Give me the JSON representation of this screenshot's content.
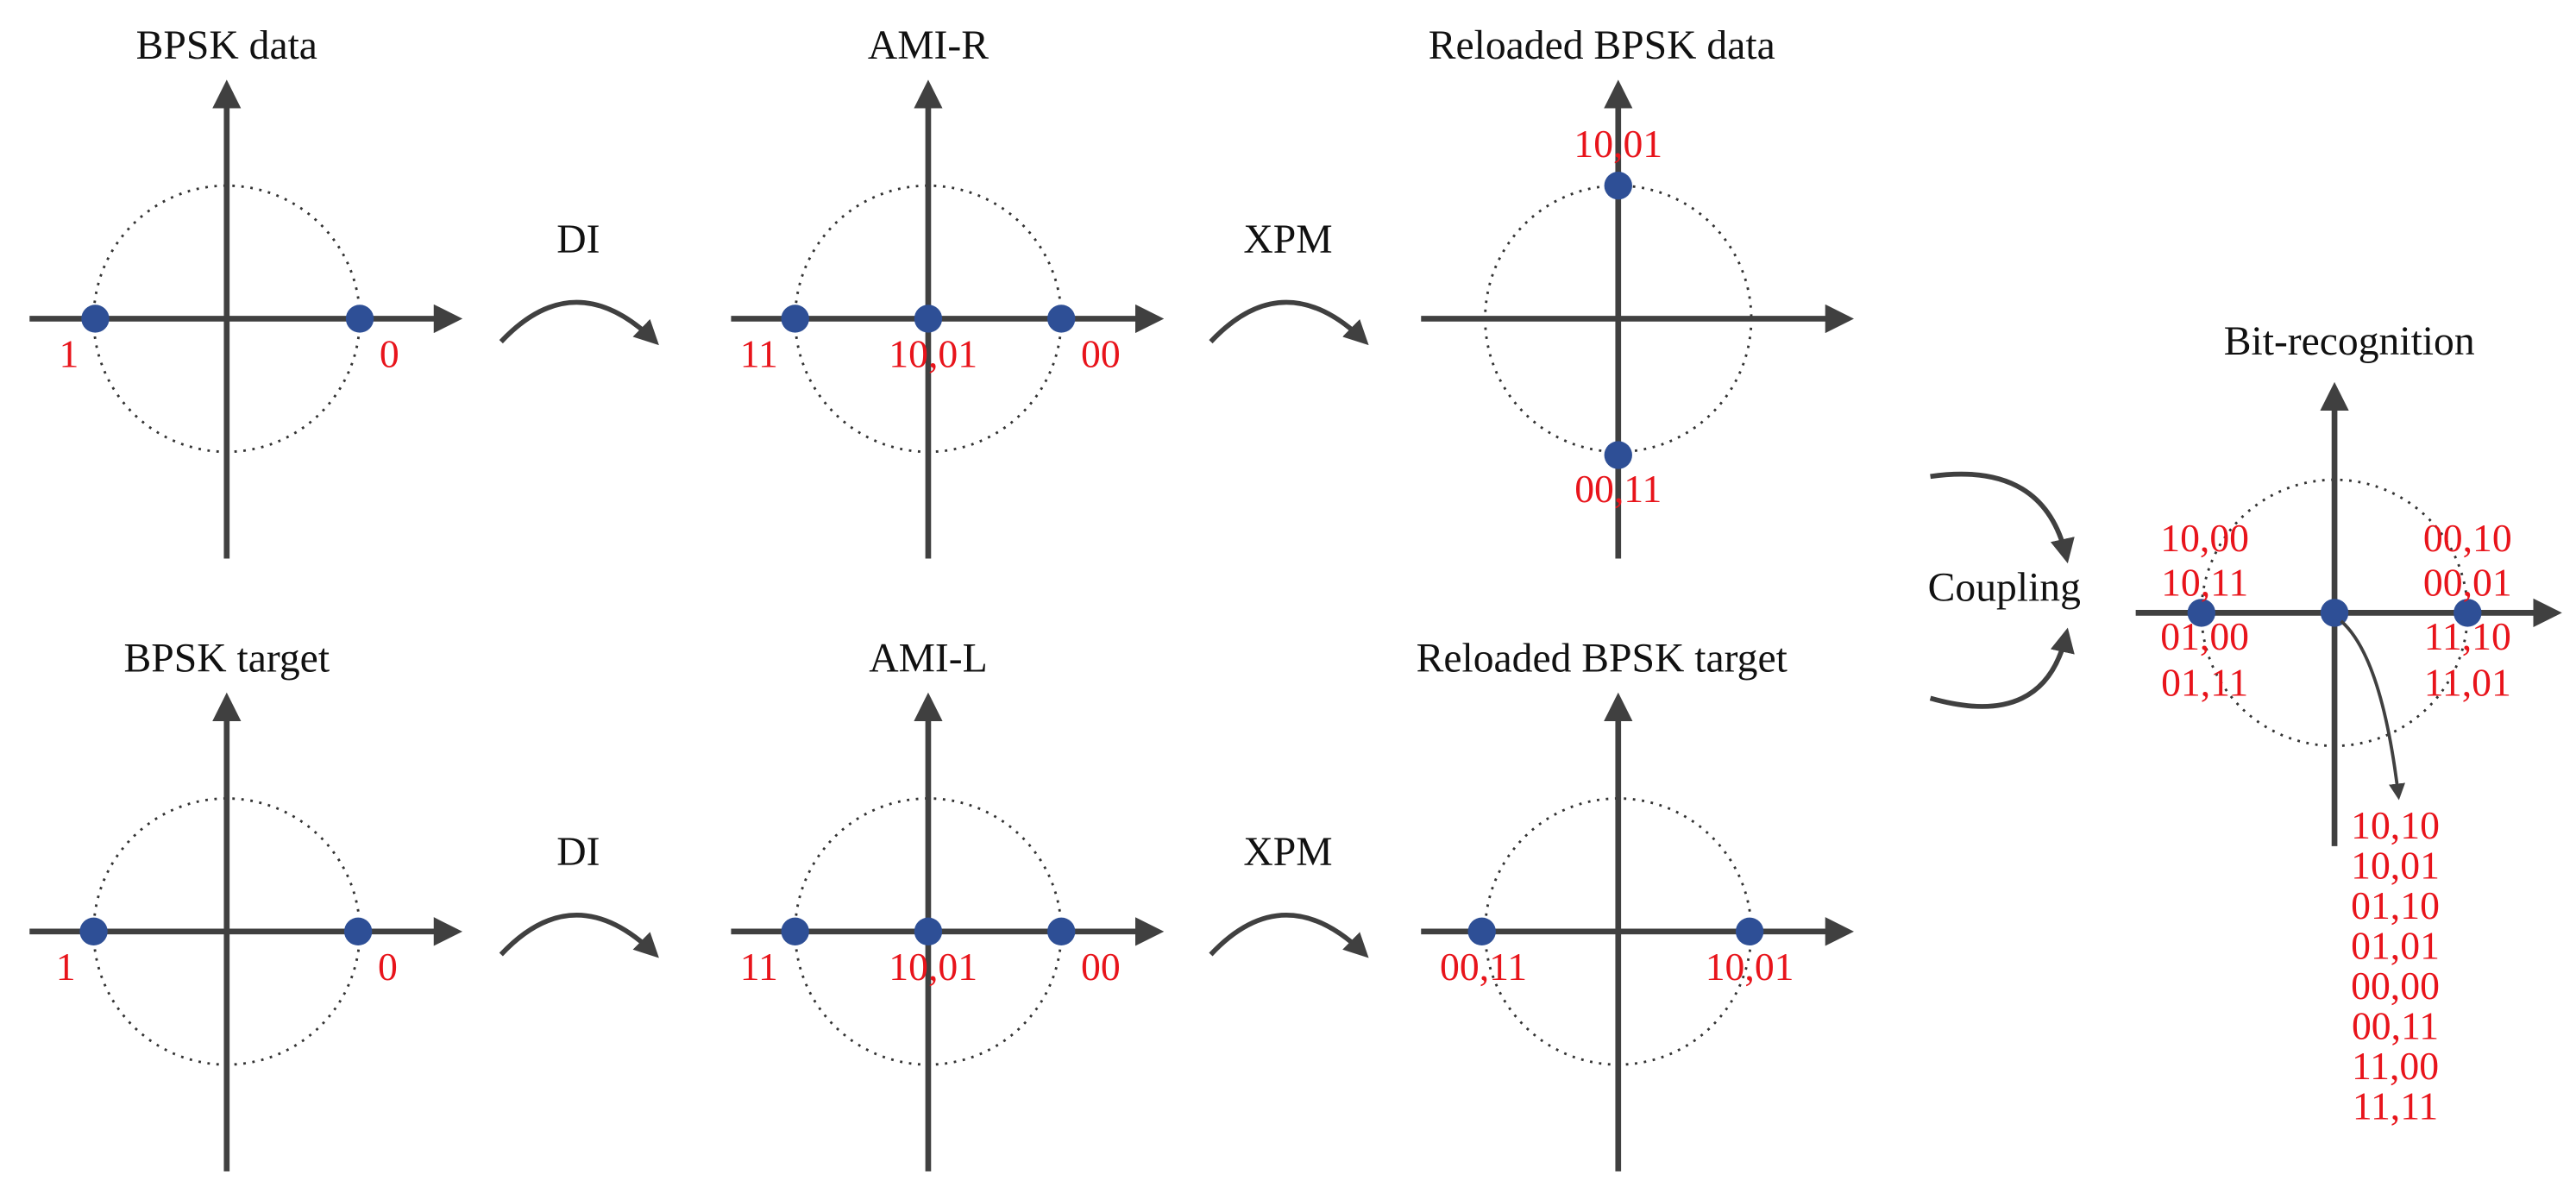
{
  "panels": [
    {
      "title": "BPSK data",
      "labels": [
        "1",
        "0"
      ]
    },
    {
      "title": "AMI-R",
      "labels": [
        "11",
        "10,01",
        "00"
      ]
    },
    {
      "title": "Reloaded BPSK data",
      "labels": [
        "10,01",
        "00,11"
      ]
    },
    {
      "title": "BPSK target",
      "labels": [
        "1",
        "0"
      ]
    },
    {
      "title": "AMI-L",
      "labels": [
        "11",
        "10,01",
        "00"
      ]
    },
    {
      "title": "Reloaded BPSK target",
      "labels": [
        "00,11",
        "10,01"
      ]
    }
  ],
  "arrows": [
    "DI",
    "XPM",
    "DI",
    "XPM"
  ],
  "coupling": "Coupling",
  "recognition": {
    "title": "Bit-recognition",
    "left": [
      "10,00",
      "10,11",
      "01,00",
      "01,11"
    ],
    "right": [
      "00,10",
      "00,01",
      "11,10",
      "11,01"
    ],
    "center": [
      "10,10",
      "10,01",
      "01,10",
      "01,01",
      "00,00",
      "00,11",
      "11,00",
      "11,11"
    ]
  }
}
